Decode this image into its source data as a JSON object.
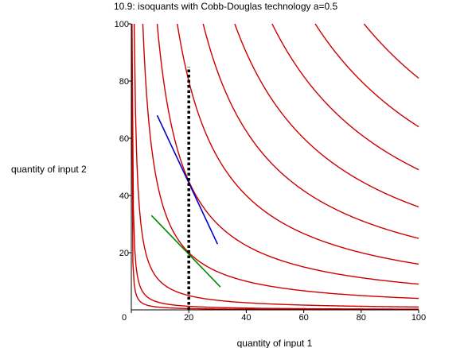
{
  "chart_data": {
    "type": "line",
    "title": "10.9: isoquants with Cobb-Douglas technology a=0.5",
    "xlabel": "quantity of input 1",
    "ylabel": "quantity of input 2",
    "xlim": [
      0,
      100
    ],
    "ylim": [
      0,
      100
    ],
    "x_ticks": [
      "0",
      "20",
      "40",
      "60",
      "80",
      "100"
    ],
    "y_ticks": [
      "20",
      "40",
      "60",
      "80",
      "100"
    ],
    "grid": false,
    "legend": "none",
    "isoquants": {
      "function": "x1^0.5 * x2^0.5",
      "levels": [
        3,
        5,
        10,
        20,
        30,
        40,
        50,
        60,
        70,
        80,
        90
      ],
      "color": "#cc0000"
    },
    "lines": [
      {
        "points": [
          [
            9,
            68
          ],
          [
            30,
            23
          ]
        ],
        "color": "#0000cc"
      },
      {
        "points": [
          [
            7,
            33
          ],
          [
            31,
            8
          ]
        ],
        "color": "#008800"
      }
    ],
    "vertical_line": {
      "x": 20,
      "y_range": [
        0,
        85
      ],
      "color": "#000000",
      "style": "dotted"
    }
  }
}
